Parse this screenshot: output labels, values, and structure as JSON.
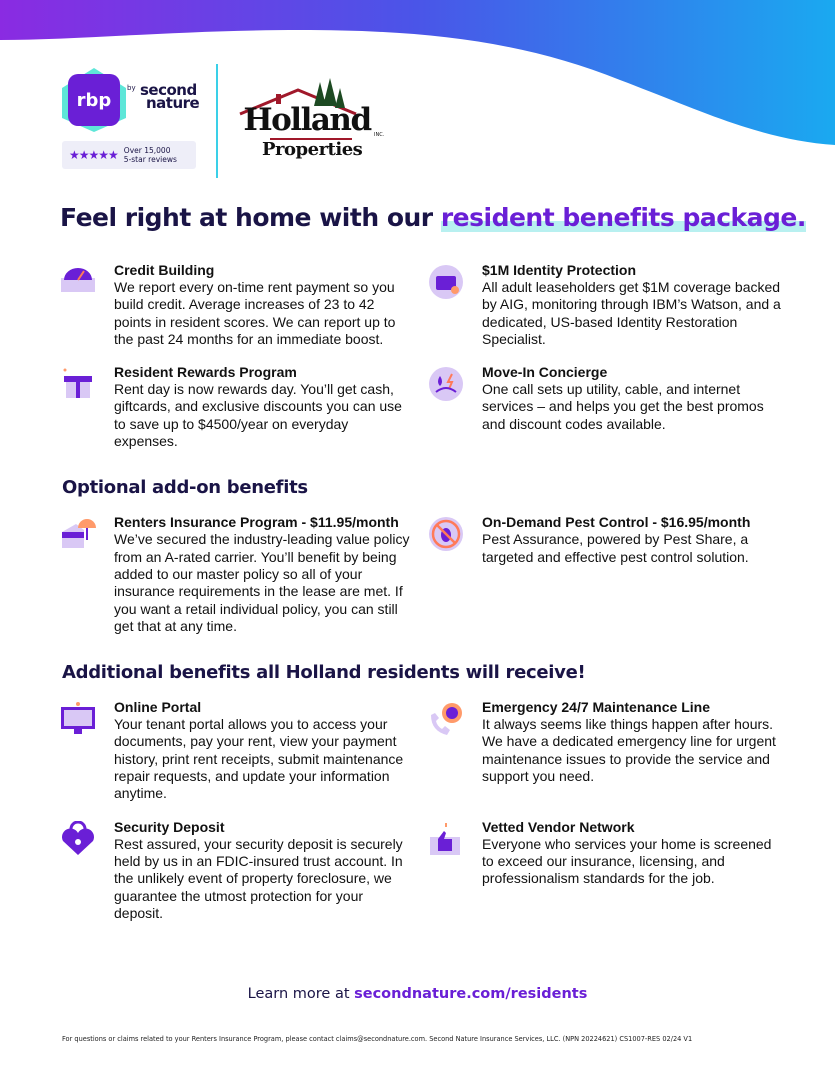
{
  "colors": {
    "brand_purple": "#6a1fd6",
    "navy": "#1a1446",
    "wave_start": "#8a2be2",
    "wave_end": "#1aa9f0",
    "highlight": "#b8f0f0"
  },
  "logos": {
    "rbp": {
      "mark": "rbp",
      "by": "by",
      "name_line1": "second",
      "name_line2": "nature",
      "review_count": "Over 15,000",
      "review_label": "5-star reviews",
      "stars": 5
    },
    "holland": {
      "name": "Holland",
      "sub": "Properties",
      "inc": "INC."
    }
  },
  "headline": {
    "prefix": "Feel right at home with our ",
    "highlight": "resident benefits package."
  },
  "benefits": [
    {
      "icon": "credit-gauge-icon",
      "title": "Credit Building",
      "desc": "We report every on-time rent payment so you build credit. Average increases of 23 to 42 points in resident scores. We can report up to the past 24 months for an immediate boost."
    },
    {
      "icon": "identity-card-icon",
      "title": "$1M Identity Protection",
      "desc": "All adult leaseholders get $1M coverage backed by AIG, monitoring through IBM’s Watson, and a dedicated, US-based Identity Restoration Specialist."
    },
    {
      "icon": "gift-icon",
      "title": "Resident Rewards Program",
      "desc": "Rent day is now rewards day. You’ll get cash, giftcards, and exclusive discounts you can use to save up to $4500/year on everyday expenses."
    },
    {
      "icon": "utilities-icon",
      "title": "Move-In Concierge",
      "desc": "One call sets up utility, cable, and internet services – and helps you get the best promos and discount codes available."
    }
  ],
  "optional": {
    "title": "Optional add-on benefits",
    "items": [
      {
        "icon": "umbrella-house-icon",
        "title": "Renters Insurance Program - $11.95/month",
        "desc": "We’ve secured the industry-leading value policy from an A-rated carrier. You’ll benefit by being added to our master policy so all of your insurance requirements in the lease are met. If you want a retail individual policy, you can still get that at any time."
      },
      {
        "icon": "no-bug-icon",
        "title": "On-Demand Pest Control - $16.95/month",
        "desc": "Pest Assurance, powered by Pest Share, a targeted and effective pest control solution."
      }
    ]
  },
  "additional": {
    "title": "Additional benefits all Holland residents will receive!",
    "items": [
      {
        "icon": "monitor-icon",
        "title": "Online Portal",
        "desc": "Your tenant portal allows you to access your documents, pay your rent, view your payment history, print rent receipts, submit maintenance repair requests, and update your information anytime."
      },
      {
        "icon": "phone-gear-icon",
        "title": "Emergency 24/7 Maintenance Line",
        "desc": "It always seems like things happen after hours. We have a dedicated emergency line for urgent maintenance issues to provide the service and support you need."
      },
      {
        "icon": "heart-lock-icon",
        "title": "Security Deposit",
        "desc": "Rest assured, your security deposit is securely held by us in an FDIC-insured trust account. In the unlikely event of property foreclosure, we guarantee the utmost protection for your deposit."
      },
      {
        "icon": "thumbs-up-icon",
        "title": "Vetted Vendor Network",
        "desc": "Everyone who services your home is screened to exceed our insurance, licensing, and professionalism standards for the job."
      }
    ]
  },
  "learn_more": {
    "prefix": "Learn more at ",
    "link": "secondnature.com/residents"
  },
  "footer": "For questions or claims related to your Renters Insurance Program, please contact claims@secondnature.com. Second Nature Insurance Services, LLC. (NPN 20224621)     CS1007-RES 02/24 V1"
}
